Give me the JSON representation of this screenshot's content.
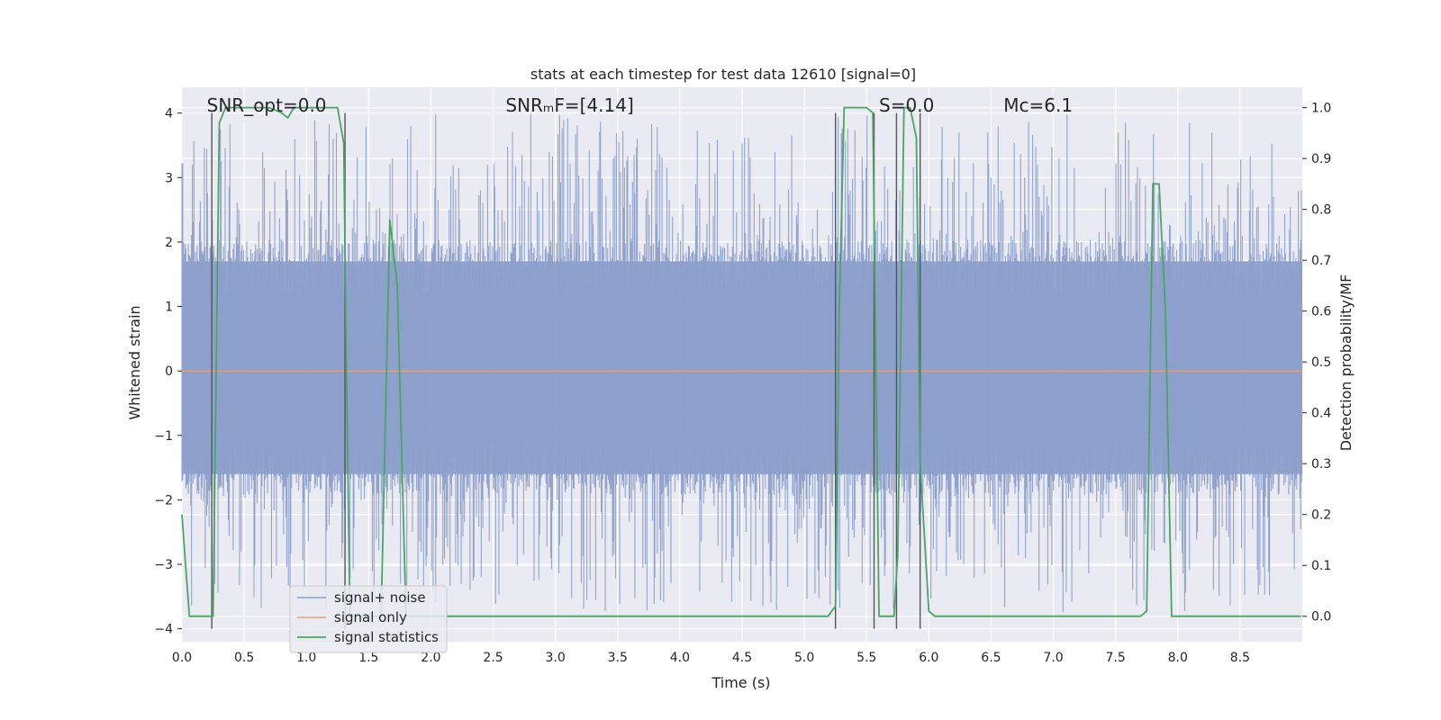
{
  "chart_data": {
    "type": "line",
    "title": "stats at each timestep for test data 12610 [signal=0]",
    "xlabel": "Time (s)",
    "ylabel": "Whitened strain",
    "y2label": "Detection probability/MF",
    "xlim": [
      0,
      9.0
    ],
    "ylim": [
      -4.2,
      4.4
    ],
    "y2lim": [
      -0.05,
      1.04
    ],
    "grid": true,
    "legend_position": "lower-left",
    "x_ticks": [
      "0.0",
      "0.5",
      "1.0",
      "1.5",
      "2.0",
      "2.5",
      "3.0",
      "3.5",
      "4.0",
      "4.5",
      "5.0",
      "5.5",
      "6.0",
      "6.5",
      "7.0",
      "7.5",
      "8.0",
      "8.5"
    ],
    "x_tick_values": [
      0,
      0.5,
      1.0,
      1.5,
      2.0,
      2.5,
      3.0,
      3.5,
      4.0,
      4.5,
      5.0,
      5.5,
      6.0,
      6.5,
      7.0,
      7.5,
      8.0,
      8.5
    ],
    "y_ticks": [
      "4",
      "3",
      "2",
      "1",
      "0",
      "−1",
      "−2",
      "−3",
      "−4"
    ],
    "y_tick_values": [
      4,
      3,
      2,
      1,
      0,
      -1,
      -2,
      -3,
      -4
    ],
    "y2_ticks": [
      "1.0",
      "0.9",
      "0.8",
      "0.7",
      "0.6",
      "0.5",
      "0.4",
      "0.3",
      "0.2",
      "0.1",
      "0.0"
    ],
    "y2_tick_values": [
      1.0,
      0.9,
      0.8,
      0.7,
      0.6,
      0.5,
      0.4,
      0.3,
      0.2,
      0.1,
      0.0
    ],
    "annotations": [
      {
        "text": "SNR_opt=0.0",
        "x": 0.2,
        "y": 4.05
      },
      {
        "text": "SNRₘF=[4.14]",
        "x": 2.6,
        "y": 4.05
      },
      {
        "text": "S=0.0",
        "x": 5.6,
        "y": 4.05
      },
      {
        "text": "Mᴄ=6.1",
        "x": 6.6,
        "y": 4.05
      }
    ],
    "series": [
      {
        "name": "signal+ noise",
        "color": "#8da0cb",
        "axis": "left",
        "kind": "noise",
        "band_low": -1.6,
        "band_high": 1.7,
        "peak_max": 4.0,
        "peak_min": -3.75
      },
      {
        "name": "signal only",
        "color": "#e8a07a",
        "axis": "left",
        "x": [
          0,
          9.0
        ],
        "values": [
          0,
          0
        ]
      },
      {
        "name": "signal statistics",
        "color": "#4aa564",
        "axis": "right",
        "x": [
          0,
          0.03,
          0.06,
          0.1,
          0.2,
          0.25,
          0.3,
          0.35,
          0.4,
          0.5,
          0.6,
          0.7,
          0.8,
          0.85,
          0.9,
          0.95,
          1.0,
          1.1,
          1.2,
          1.25,
          1.3,
          1.32,
          1.35,
          1.4,
          1.45,
          1.5,
          1.6,
          1.67,
          1.73,
          1.8,
          1.85,
          1.9,
          2.0,
          2.5,
          3.0,
          3.5,
          4.0,
          4.5,
          5.0,
          5.19,
          5.25,
          5.28,
          5.32,
          5.4,
          5.5,
          5.55,
          5.6,
          5.7,
          5.72,
          5.75,
          5.8,
          5.85,
          5.9,
          5.93,
          6.0,
          6.05,
          6.5,
          7.0,
          7.4,
          7.45,
          7.5,
          7.7,
          7.75,
          7.8,
          7.85,
          7.9,
          7.95,
          8.0,
          8.5,
          8.99
        ],
        "values": [
          0.2,
          0.1,
          0.0,
          0.0,
          0.0,
          0.0,
          0.97,
          1.0,
          1.0,
          1.0,
          1.0,
          1.0,
          0.99,
          0.98,
          1.0,
          1.0,
          1.0,
          1.0,
          1.0,
          1.0,
          0.93,
          0.5,
          0.0,
          0.0,
          0.0,
          0.0,
          0.0,
          0.78,
          0.65,
          0.0,
          0.0,
          0.0,
          0.0,
          0.0,
          0.0,
          0.0,
          0.0,
          0.0,
          0.0,
          0.0,
          0.02,
          0.6,
          1.0,
          1.0,
          1.0,
          0.99,
          0.0,
          0.0,
          0.0,
          0.12,
          1.0,
          1.0,
          0.94,
          0.3,
          0.01,
          0.0,
          0.0,
          0.0,
          0.0,
          0.0,
          0.0,
          0.0,
          0.01,
          0.85,
          0.85,
          0.6,
          0.0,
          0.0,
          0.0,
          0.0
        ]
      }
    ],
    "vertical_lines": {
      "color": "#555555",
      "x": [
        0.24,
        1.31,
        5.25,
        5.56,
        5.74,
        5.93
      ]
    }
  }
}
